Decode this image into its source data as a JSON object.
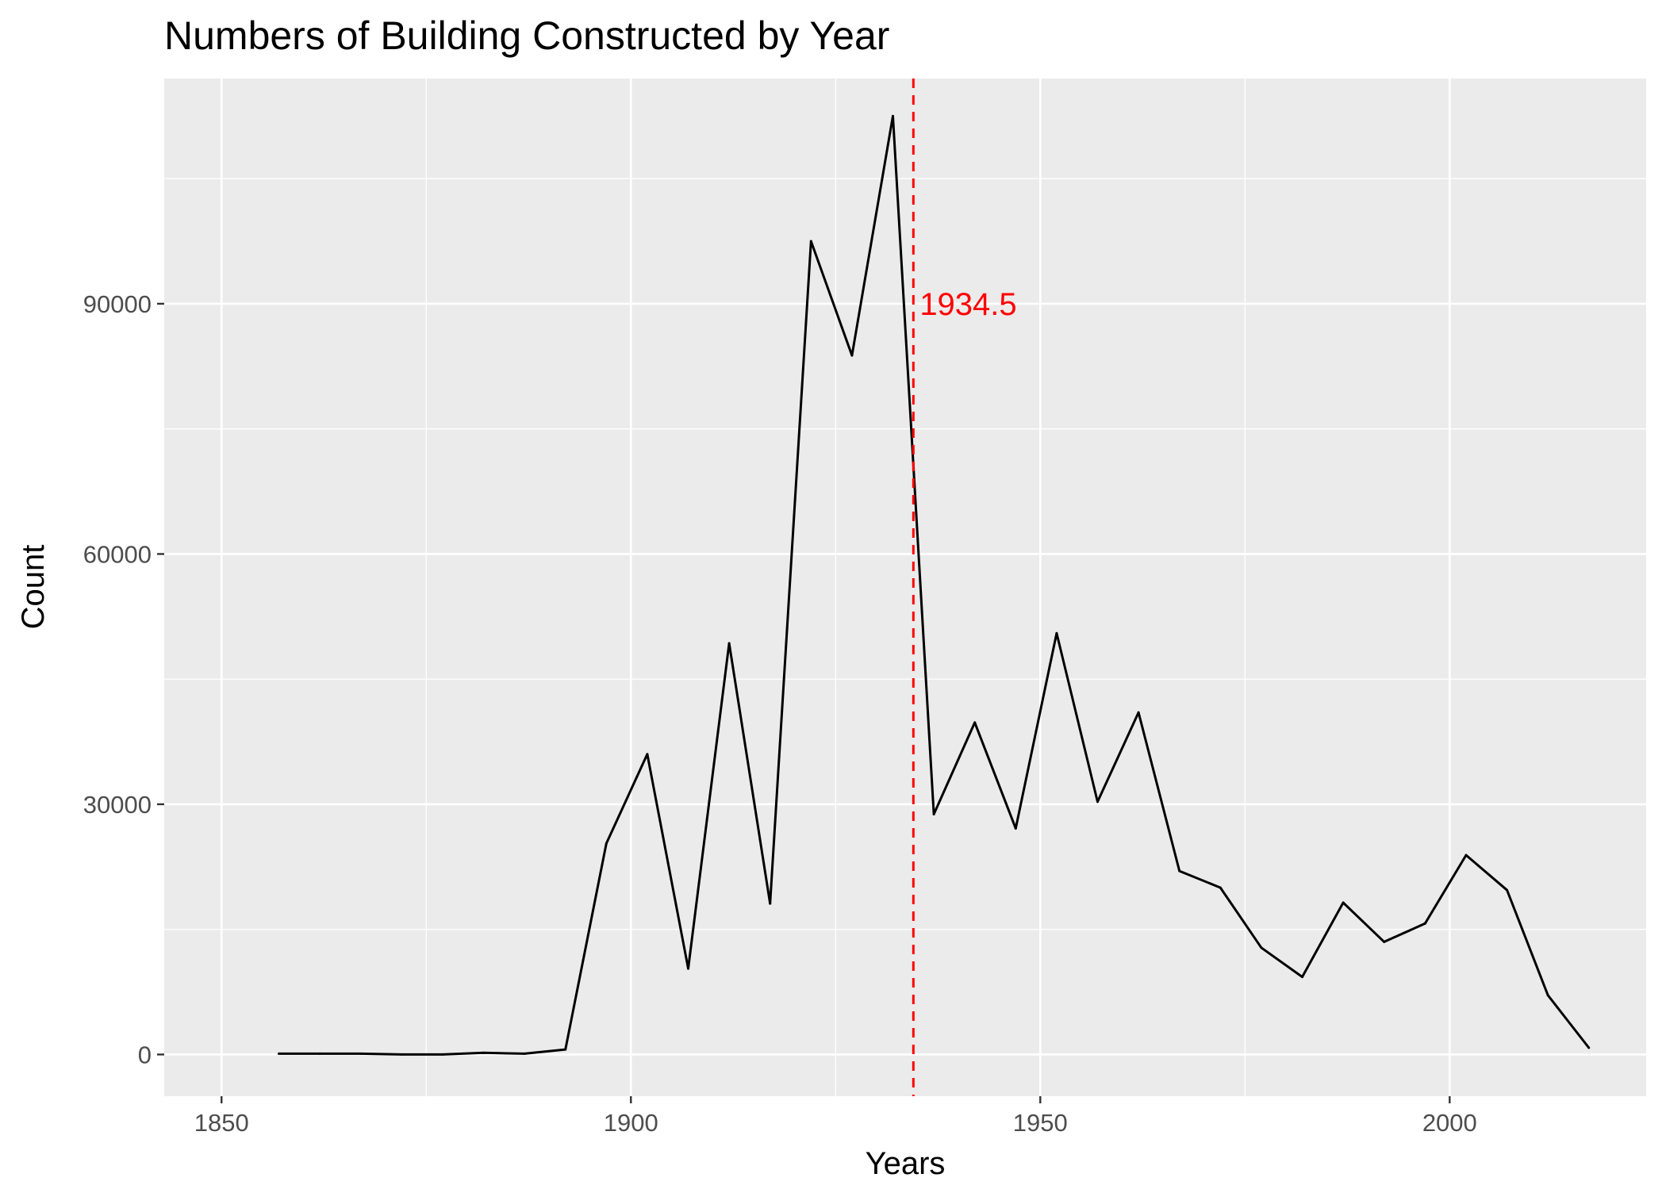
{
  "chart_data": {
    "type": "line",
    "title": "Numbers of Building Constructed by Year",
    "xlabel": "Years",
    "ylabel": "Count",
    "xlim": [
      1843,
      2024
    ],
    "ylim": [
      -5000,
      117000
    ],
    "x_ticks": [
      1850,
      1900,
      1950,
      2000
    ],
    "x_tick_labels": [
      "1850",
      "1900",
      "1950",
      "2000"
    ],
    "x_minor_ticks": [
      1875,
      1925,
      1975
    ],
    "y_ticks": [
      0,
      30000,
      60000,
      90000
    ],
    "y_tick_labels": [
      "0",
      "30000",
      "60000",
      "90000"
    ],
    "y_minor_ticks": [
      15000,
      45000,
      75000,
      105000
    ],
    "grid": true,
    "background": "#ebebeb",
    "grid_color": "#ffffff",
    "line_color": "#000000",
    "series": [
      {
        "x": [
          1857,
          1862,
          1867,
          1872,
          1877,
          1882,
          1887,
          1892,
          1897,
          1902,
          1907,
          1912,
          1917,
          1922,
          1927,
          1932,
          1937,
          1942,
          1947,
          1952,
          1957,
          1962,
          1967,
          1972,
          1977,
          1982,
          1987,
          1992,
          1997,
          2002,
          2007,
          2012,
          2017
        ],
        "values": [
          100,
          100,
          100,
          0,
          0,
          200,
          100,
          600,
          25300,
          36000,
          10300,
          49300,
          18100,
          97500,
          83800,
          112500,
          28800,
          39800,
          27100,
          50500,
          30300,
          41000,
          22000,
          20000,
          12800,
          9300,
          18200,
          13500,
          15700,
          23900,
          19700,
          7100,
          800
        ]
      }
    ],
    "vline": {
      "x": 1934.5,
      "color": "#ff0000",
      "style": "dashed"
    },
    "annotation": {
      "text": "1934.5",
      "x": 1934.5,
      "y": 90000,
      "color": "#ff0000"
    }
  }
}
